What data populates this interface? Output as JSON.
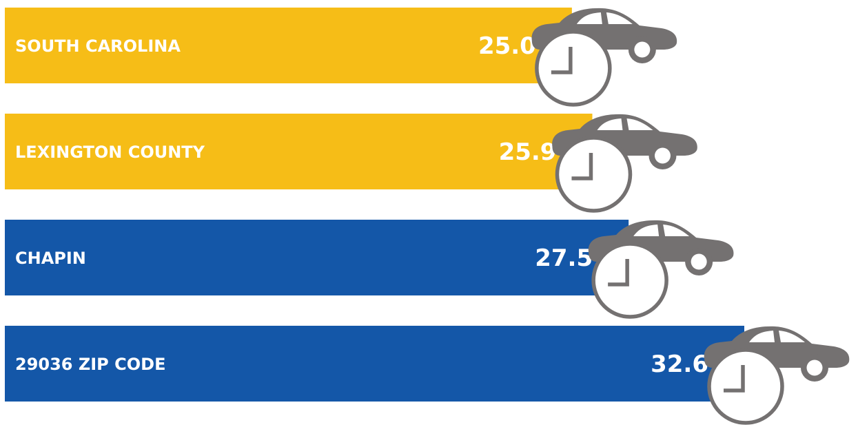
{
  "chart_data": {
    "type": "bar",
    "orientation": "horizontal",
    "categories": [
      "SOUTH CAROLINA",
      "LEXINGTON COUNTY",
      "CHAPIN",
      "29036 ZIP CODE"
    ],
    "values": [
      25.0,
      25.9,
      27.5,
      32.6
    ],
    "value_labels": [
      "25.0",
      "25.9",
      "27.5",
      "32.6"
    ],
    "bar_colors": [
      "#F6BD17",
      "#F6BD17",
      "#1457A8",
      "#1457A8"
    ],
    "icon": "car-clock-icon",
    "icon_color": "#747171",
    "grid": false,
    "legend": "none"
  }
}
